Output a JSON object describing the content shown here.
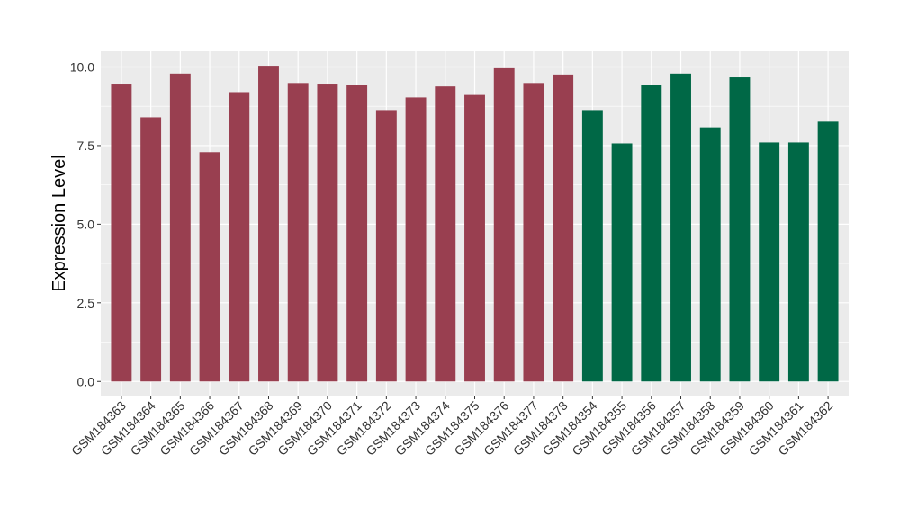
{
  "chart_data": {
    "type": "bar",
    "title": "",
    "xlabel": "",
    "ylabel": "Expression Level",
    "ylim": [
      -0.45,
      10.5
    ],
    "yticks": [
      0.0,
      2.5,
      5.0,
      7.5,
      10.0
    ],
    "ytick_labels": [
      "0.0",
      "2.5",
      "5.0",
      "7.5",
      "10.0"
    ],
    "grid": true,
    "legend": "none",
    "panel_background": "#EBEBEB",
    "grid_color": "#FFFFFF",
    "group_colors": {
      "group_1": "#993F50",
      "group_2": "#006846"
    },
    "categories": [
      "GSM184363",
      "GSM184364",
      "GSM184365",
      "GSM184366",
      "GSM184367",
      "GSM184368",
      "GSM184369",
      "GSM184370",
      "GSM184371",
      "GSM184372",
      "GSM184373",
      "GSM184374",
      "GSM184375",
      "GSM184376",
      "GSM184377",
      "GSM184378",
      "GSM184354",
      "GSM184355",
      "GSM184356",
      "GSM184357",
      "GSM184358",
      "GSM184359",
      "GSM184360",
      "GSM184361",
      "GSM184362"
    ],
    "values": [
      9.47,
      8.4,
      9.79,
      7.29,
      9.2,
      10.04,
      9.49,
      9.47,
      9.43,
      8.63,
      9.03,
      9.38,
      9.11,
      9.96,
      9.49,
      9.76,
      8.63,
      7.57,
      9.43,
      9.79,
      8.08,
      9.67,
      7.6,
      7.6,
      8.26
    ],
    "groups": [
      "group_1",
      "group_1",
      "group_1",
      "group_1",
      "group_1",
      "group_1",
      "group_1",
      "group_1",
      "group_1",
      "group_1",
      "group_1",
      "group_1",
      "group_1",
      "group_1",
      "group_1",
      "group_1",
      "group_2",
      "group_2",
      "group_2",
      "group_2",
      "group_2",
      "group_2",
      "group_2",
      "group_2",
      "group_2"
    ]
  }
}
